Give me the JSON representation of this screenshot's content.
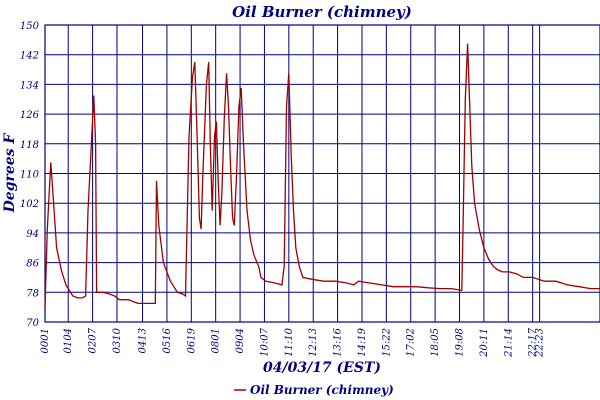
{
  "chart_data": {
    "type": "line",
    "title": "Oil Burner (chimney)",
    "xlabel": "04/03/17 (EST)",
    "ylabel": "Degrees F",
    "ylim": [
      70,
      150
    ],
    "yticks": [
      70,
      78,
      86,
      94,
      102,
      110,
      118,
      126,
      134,
      142,
      150
    ],
    "xlim": [
      0.0,
      23.9
    ],
    "grid": true,
    "legend_position": "bottom-center",
    "x_tick_labels": [
      {
        "t": 0.0,
        "label": "0001"
      },
      {
        "t": 1.0,
        "label": "0104"
      },
      {
        "t": 2.05,
        "label": "0207"
      },
      {
        "t": 3.1,
        "label": "0310"
      },
      {
        "t": 4.2,
        "label": "0413"
      },
      {
        "t": 5.25,
        "label": "0516"
      },
      {
        "t": 6.3,
        "label": "0619"
      },
      {
        "t": 7.35,
        "label": "0801"
      },
      {
        "t": 8.4,
        "label": "0904"
      },
      {
        "t": 9.45,
        "label": "10:07"
      },
      {
        "t": 10.5,
        "label": "11:10"
      },
      {
        "t": 11.55,
        "label": "12:13"
      },
      {
        "t": 12.6,
        "label": "13:16"
      },
      {
        "t": 13.65,
        "label": "14:19"
      },
      {
        "t": 14.7,
        "label": "15:22"
      },
      {
        "t": 15.75,
        "label": "17:02"
      },
      {
        "t": 16.8,
        "label": "18:05"
      },
      {
        "t": 17.85,
        "label": "19:08"
      },
      {
        "t": 18.9,
        "label": "20:11"
      },
      {
        "t": 19.95,
        "label": "21:14"
      },
      {
        "t": 21.0,
        "label": "22:17"
      },
      {
        "t": 21.3,
        "label": "22:23"
      }
    ],
    "series": [
      {
        "name": "Oil Burner (chimney)",
        "color": "#a00000",
        "points": [
          [
            0.0,
            74
          ],
          [
            0.1,
            95
          ],
          [
            0.25,
            113
          ],
          [
            0.35,
            104
          ],
          [
            0.5,
            90
          ],
          [
            0.7,
            84
          ],
          [
            0.9,
            80
          ],
          [
            1.1,
            78
          ],
          [
            1.2,
            77
          ],
          [
            1.4,
            76.5
          ],
          [
            1.6,
            76.5
          ],
          [
            1.75,
            77
          ],
          [
            1.85,
            100
          ],
          [
            2.0,
            118
          ],
          [
            2.1,
            131
          ],
          [
            2.18,
            118
          ],
          [
            2.22,
            78
          ],
          [
            2.5,
            78
          ],
          [
            2.8,
            77.5
          ],
          [
            3.0,
            77
          ],
          [
            3.2,
            76
          ],
          [
            3.6,
            76
          ],
          [
            3.8,
            75.5
          ],
          [
            4.0,
            75
          ],
          [
            4.6,
            75
          ],
          [
            4.75,
            75
          ],
          [
            4.8,
            108
          ],
          [
            4.9,
            96
          ],
          [
            5.1,
            86
          ],
          [
            5.4,
            81
          ],
          [
            5.7,
            78
          ],
          [
            5.95,
            77.5
          ],
          [
            6.05,
            77
          ],
          [
            6.2,
            120
          ],
          [
            6.35,
            136
          ],
          [
            6.45,
            140
          ],
          [
            6.55,
            120
          ],
          [
            6.65,
            98
          ],
          [
            6.72,
            95
          ],
          [
            6.8,
            110
          ],
          [
            6.95,
            134
          ],
          [
            7.05,
            140
          ],
          [
            7.12,
            118
          ],
          [
            7.2,
            100
          ],
          [
            7.3,
            120
          ],
          [
            7.38,
            124
          ],
          [
            7.46,
            108
          ],
          [
            7.54,
            96
          ],
          [
            7.62,
            105
          ],
          [
            7.72,
            125
          ],
          [
            7.82,
            137
          ],
          [
            7.9,
            128
          ],
          [
            8.0,
            110
          ],
          [
            8.08,
            98
          ],
          [
            8.15,
            96
          ],
          [
            8.25,
            110
          ],
          [
            8.35,
            128
          ],
          [
            8.45,
            133
          ],
          [
            8.55,
            118
          ],
          [
            8.7,
            100
          ],
          [
            8.85,
            92
          ],
          [
            9.0,
            88
          ],
          [
            9.2,
            85
          ],
          [
            9.3,
            82
          ],
          [
            9.5,
            81
          ],
          [
            9.9,
            80.5
          ],
          [
            10.2,
            80
          ],
          [
            10.3,
            85
          ],
          [
            10.4,
            128
          ],
          [
            10.5,
            137
          ],
          [
            10.6,
            115
          ],
          [
            10.7,
            100
          ],
          [
            10.8,
            90
          ],
          [
            10.95,
            85
          ],
          [
            11.1,
            82
          ],
          [
            11.5,
            81.5
          ],
          [
            12.0,
            81
          ],
          [
            12.5,
            81
          ],
          [
            13.0,
            80.5
          ],
          [
            13.3,
            80
          ],
          [
            13.5,
            81
          ],
          [
            14.0,
            80.5
          ],
          [
            14.5,
            80
          ],
          [
            15.0,
            79.5
          ],
          [
            15.5,
            79.5
          ],
          [
            16.0,
            79.5
          ],
          [
            16.5,
            79.2
          ],
          [
            17.0,
            79
          ],
          [
            17.5,
            79
          ],
          [
            17.95,
            78.5
          ],
          [
            18.0,
            95
          ],
          [
            18.1,
            130
          ],
          [
            18.2,
            145
          ],
          [
            18.28,
            130
          ],
          [
            18.38,
            112
          ],
          [
            18.5,
            102
          ],
          [
            18.7,
            95
          ],
          [
            18.9,
            90
          ],
          [
            19.1,
            87
          ],
          [
            19.3,
            85
          ],
          [
            19.5,
            84
          ],
          [
            19.7,
            83.5
          ],
          [
            20.0,
            83.5
          ],
          [
            20.3,
            83
          ],
          [
            20.6,
            82
          ],
          [
            21.0,
            82
          ],
          [
            21.5,
            81
          ],
          [
            22.0,
            81
          ],
          [
            22.5,
            80
          ],
          [
            23.0,
            79.5
          ],
          [
            23.5,
            79
          ],
          [
            23.9,
            79
          ]
        ]
      }
    ]
  }
}
